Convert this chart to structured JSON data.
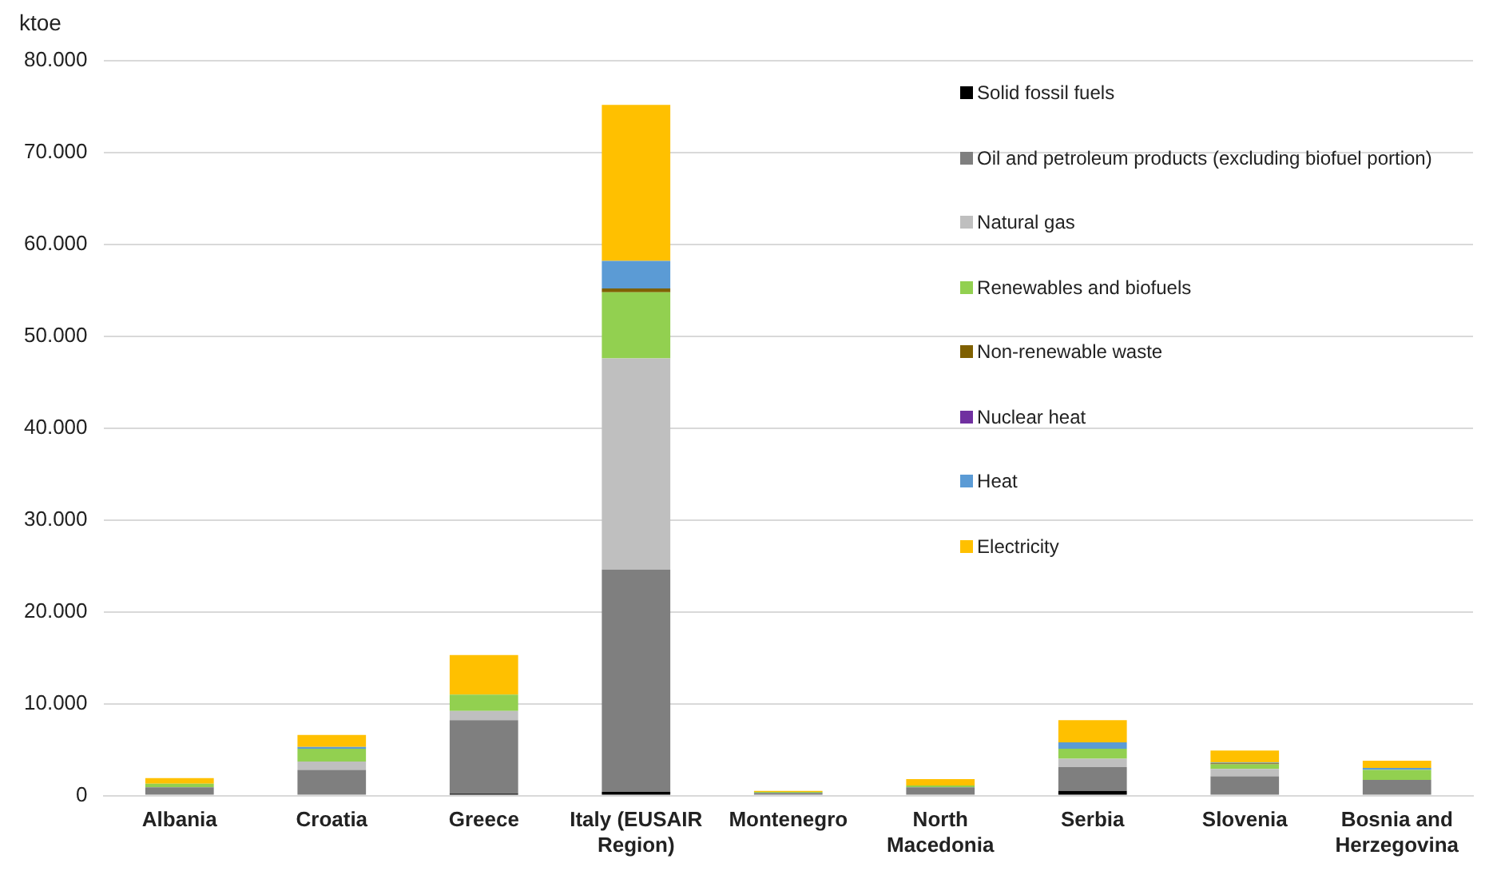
{
  "chart_data": {
    "type": "bar",
    "stacked": true,
    "ylabel": "ktoe",
    "categories": [
      "Albania",
      "Croatia",
      "Greece",
      "Italy (EUSAIR Region)",
      "Montenegro",
      "North Macedonia",
      "Serbia",
      "Slovenia",
      "Bosnia and Herzegovina"
    ],
    "series": [
      {
        "name": "Solid fossil fuels",
        "color": "#000000",
        "values": [
          null,
          100,
          200,
          400,
          null,
          100,
          500,
          100,
          100
        ]
      },
      {
        "name": "Oil and petroleum products (excluding biofuel portion)",
        "color": "#7f7f7f",
        "values": [
          900,
          2700,
          8000,
          24200,
          300,
          800,
          2600,
          2000,
          1600
        ]
      },
      {
        "name": "Natural gas",
        "color": "#bfbfbf",
        "values": [
          null,
          900,
          1000,
          23000,
          0,
          null,
          900,
          800,
          null
        ]
      },
      {
        "name": "Renewables and biofuels",
        "color": "#92d050",
        "values": [
          400,
          1400,
          1800,
          7200,
          100,
          200,
          1100,
          500,
          1100
        ]
      },
      {
        "name": "Non-renewable waste",
        "color": "#7f6000",
        "values": [
          0,
          0,
          0,
          400,
          0,
          0,
          0,
          100,
          0
        ]
      },
      {
        "name": "Nuclear heat",
        "color": "#7030a0",
        "values": [
          0,
          0,
          0,
          0,
          0,
          0,
          0,
          0,
          0
        ]
      },
      {
        "name": "Heat",
        "color": "#5b9bd5",
        "values": [
          0,
          200,
          0,
          3000,
          0,
          0,
          700,
          100,
          200
        ]
      },
      {
        "name": "Electricity",
        "color": "#ffc000",
        "values": [
          600,
          1300,
          4300,
          17000,
          100,
          700,
          2400,
          1300,
          800
        ]
      }
    ],
    "ylim": [
      0,
      80000
    ],
    "yticks": [
      0,
      {
        "value": 10000,
        "label": "10.000"
      },
      {
        "value": 20000,
        "label": "20.000"
      },
      {
        "value": 30000,
        "label": "30.000"
      },
      {
        "value": 40000,
        "label": "40.000"
      },
      {
        "value": 50000,
        "label": "50.000"
      },
      {
        "value": 60000,
        "label": "60.000"
      },
      {
        "value": 70000,
        "label": "70.000"
      },
      {
        "value": 80000,
        "label": "80.000"
      }
    ],
    "grid": "y",
    "legend": "top right"
  }
}
